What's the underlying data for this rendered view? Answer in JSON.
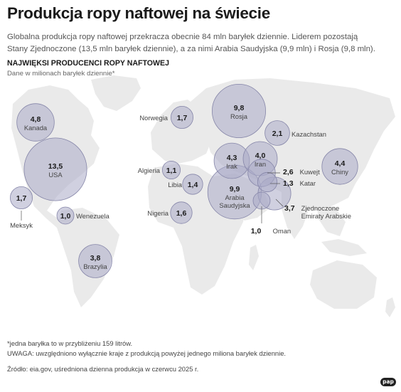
{
  "header": {
    "title": "Produkcja ropy naftowej na świecie",
    "intro": "Globalna produkcja ropy naftowej przekracza obecnie 84 mln baryłek dziennie. Liderem pozostają Stany Zjednoczone (13,5 mln baryłek dziennie), a za nimi Arabia Saudyjska (9,9 mln) i Rosja (9,8 mln).",
    "section_title": "NAJWIĘKSI PRODUCENCI ROPY NAFTOWEJ",
    "section_sub": "Dane w milionach baryłek dziennie*"
  },
  "colors": {
    "land": "#eaeaea",
    "bubble_fill": "#a9a9c6",
    "bubble_stroke": "#8585a8",
    "text": "#333333"
  },
  "producers": [
    {
      "country": "Kanada",
      "value": 4.8,
      "value_label": "4,8"
    },
    {
      "country": "USA",
      "value": 13.5,
      "value_label": "13,5"
    },
    {
      "country": "Meksyk",
      "value": 1.7,
      "value_label": "1,7"
    },
    {
      "country": "Wenezuela",
      "value": 1.0,
      "value_label": "1,0"
    },
    {
      "country": "Brazylia",
      "value": 3.8,
      "value_label": "3,8"
    },
    {
      "country": "Norwegia",
      "value": 1.7,
      "value_label": "1,7"
    },
    {
      "country": "Rosja",
      "value": 9.8,
      "value_label": "9,8"
    },
    {
      "country": "Kazachstan",
      "value": 2.1,
      "value_label": "2,1"
    },
    {
      "country": "Algieria",
      "value": 1.1,
      "value_label": "1,1"
    },
    {
      "country": "Libia",
      "value": 1.4,
      "value_label": "1,4"
    },
    {
      "country": "Nigeria",
      "value": 1.6,
      "value_label": "1,6"
    },
    {
      "country": "Irak",
      "value": 4.3,
      "value_label": "4,3"
    },
    {
      "country": "Iran",
      "value": 4.0,
      "value_label": "4,0"
    },
    {
      "country": "Arabia Saudyjska",
      "value": 9.9,
      "value_label": "9,9"
    },
    {
      "country": "Kuwejt",
      "value": 2.6,
      "value_label": "2,6"
    },
    {
      "country": "Katar",
      "value": 1.3,
      "value_label": "1,3"
    },
    {
      "country": "Zjednoczone Emiraty Arabskie",
      "value": 3.7,
      "value_label": "3,7"
    },
    {
      "country": "Oman",
      "value": 1.0,
      "value_label": "1,0"
    },
    {
      "country": "Chiny",
      "value": 4.4,
      "value_label": "4,4"
    }
  ],
  "footer": {
    "note1": "*jedna baryłka to w przybliżeniu 159 litrów.",
    "note2": "UWAGA: uwzględniono wyłącznie kraje z produkcją powyżej jednego miliona baryłek dziennie.",
    "source": "Źródło: eia.gov, uśredniona dzienna produkcja w czerwcu 2025 r.",
    "logo": "pap"
  }
}
